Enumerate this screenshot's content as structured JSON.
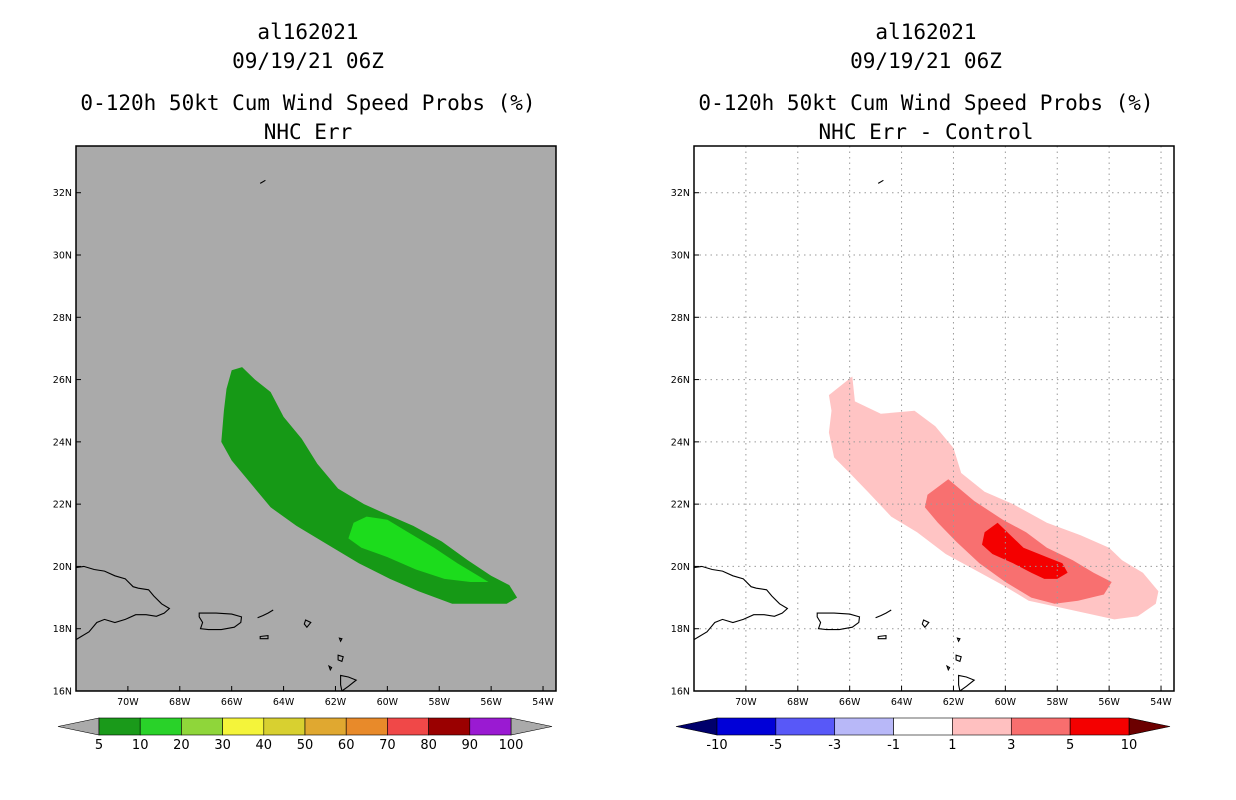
{
  "left_panel": {
    "storm_id": "al162021",
    "datetime": "09/19/21 06Z",
    "title": "0-120h 50kt Cum Wind Speed Probs (%)",
    "subtitle": "NHC Err"
  },
  "right_panel": {
    "storm_id": "al162021",
    "datetime": "09/19/21 06Z",
    "title": "0-120h 50kt Cum Wind Speed Probs (%)",
    "subtitle": "NHC Err - Control"
  },
  "chart_data": [
    {
      "type": "heatmap",
      "title": "0-120h 50kt Cum Wind Speed Probs (%)",
      "subtitle": "NHC Err",
      "xlim": [
        -72.0,
        -53.5
      ],
      "ylim": [
        16.0,
        33.5
      ],
      "x_ticks": [
        -70,
        -68,
        -66,
        -64,
        -62,
        -60,
        -58,
        -56,
        -54
      ],
      "x_tick_labels": [
        "70W",
        "68W",
        "66W",
        "64W",
        "62W",
        "60W",
        "58W",
        "56W",
        "54W"
      ],
      "y_ticks": [
        16,
        18,
        20,
        22,
        24,
        26,
        28,
        30,
        32
      ],
      "y_tick_labels": [
        "16N",
        "18N",
        "20N",
        "22N",
        "24N",
        "26N",
        "28N",
        "30N",
        "32N"
      ],
      "grid": false,
      "background": "#aaaaaa",
      "colorbar": {
        "labels": [
          "5",
          "10",
          "20",
          "30",
          "40",
          "50",
          "60",
          "70",
          "80",
          "90",
          "100"
        ],
        "colors": [
          "#1a9a1a",
          "#29d229",
          "#8fd63a",
          "#f4f43a",
          "#d8d030",
          "#e0a830",
          "#e88a2a",
          "#f04848",
          "#9a0000",
          "#9a1ad2"
        ],
        "end_colors": [
          "#aaaaaa",
          "#aaaaaa"
        ]
      },
      "contour_levels": [
        {
          "level": 5,
          "color": "#169916",
          "polygon": [
            [
              -66.0,
              26.3
            ],
            [
              -65.6,
              26.4
            ],
            [
              -65.1,
              26.0
            ],
            [
              -64.5,
              25.6
            ],
            [
              -64.0,
              24.8
            ],
            [
              -63.3,
              24.1
            ],
            [
              -62.7,
              23.3
            ],
            [
              -61.9,
              22.5
            ],
            [
              -60.9,
              22.0
            ],
            [
              -60.1,
              21.7
            ],
            [
              -59.0,
              21.3
            ],
            [
              -57.9,
              20.8
            ],
            [
              -56.9,
              20.2
            ],
            [
              -56.0,
              19.7
            ],
            [
              -55.3,
              19.4
            ],
            [
              -55.0,
              19.0
            ],
            [
              -55.4,
              18.8
            ],
            [
              -56.0,
              18.8
            ],
            [
              -57.5,
              18.8
            ],
            [
              -58.8,
              19.2
            ],
            [
              -59.9,
              19.6
            ],
            [
              -61.1,
              20.1
            ],
            [
              -62.3,
              20.7
            ],
            [
              -63.5,
              21.3
            ],
            [
              -64.5,
              21.9
            ],
            [
              -65.3,
              22.7
            ],
            [
              -66.0,
              23.4
            ],
            [
              -66.4,
              24.0
            ],
            [
              -66.3,
              25.0
            ],
            [
              -66.2,
              25.7
            ]
          ]
        },
        {
          "level": 10,
          "color": "#1cdc1c",
          "polygon": [
            [
              -61.3,
              21.4
            ],
            [
              -60.8,
              21.6
            ],
            [
              -60.0,
              21.5
            ],
            [
              -59.2,
              21.1
            ],
            [
              -58.2,
              20.6
            ],
            [
              -57.3,
              20.1
            ],
            [
              -56.5,
              19.7
            ],
            [
              -56.1,
              19.5
            ],
            [
              -56.8,
              19.5
            ],
            [
              -57.8,
              19.6
            ],
            [
              -58.9,
              19.9
            ],
            [
              -60.0,
              20.3
            ],
            [
              -61.0,
              20.6
            ],
            [
              -61.5,
              20.9
            ]
          ]
        }
      ]
    },
    {
      "type": "heatmap",
      "title": "0-120h 50kt Cum Wind Speed Probs (%)",
      "subtitle": "NHC Err - Control",
      "xlim": [
        -72.0,
        -53.5
      ],
      "ylim": [
        16.0,
        33.5
      ],
      "x_ticks": [
        -70,
        -68,
        -66,
        -64,
        -62,
        -60,
        -58,
        -56,
        -54
      ],
      "x_tick_labels": [
        "70W",
        "68W",
        "66W",
        "64W",
        "62W",
        "60W",
        "58W",
        "56W",
        "54W"
      ],
      "y_ticks": [
        16,
        18,
        20,
        22,
        24,
        26,
        28,
        30,
        32
      ],
      "y_tick_labels": [
        "16N",
        "18N",
        "20N",
        "22N",
        "24N",
        "26N",
        "28N",
        "30N",
        "32N"
      ],
      "grid": true,
      "background": "#ffffff",
      "colorbar": {
        "labels": [
          "-10",
          "-5",
          "-3",
          "-1",
          "1",
          "3",
          "5",
          "10"
        ],
        "colors": [
          "#0000d8",
          "#5858f8",
          "#b8b8f8",
          "#ffffff",
          "#ffc0c0",
          "#f86e6e",
          "#f40000"
        ],
        "end_colors": [
          "#00006c",
          "#6c0000"
        ]
      },
      "contour_levels": [
        {
          "level": 1,
          "color": "#ffc4c4",
          "polygon": [
            [
              -66.8,
              25.5
            ],
            [
              -65.9,
              26.1
            ],
            [
              -65.8,
              25.3
            ],
            [
              -64.8,
              24.9
            ],
            [
              -63.5,
              25.0
            ],
            [
              -62.7,
              24.5
            ],
            [
              -62.0,
              23.8
            ],
            [
              -61.7,
              23.0
            ],
            [
              -60.8,
              22.4
            ],
            [
              -59.7,
              22.0
            ],
            [
              -58.4,
              21.4
            ],
            [
              -57.1,
              21.0
            ],
            [
              -56.0,
              20.6
            ],
            [
              -55.5,
              20.2
            ],
            [
              -54.7,
              19.8
            ],
            [
              -54.1,
              19.2
            ],
            [
              -54.2,
              18.8
            ],
            [
              -54.9,
              18.4
            ],
            [
              -55.8,
              18.3
            ],
            [
              -56.9,
              18.5
            ],
            [
              -58.0,
              18.7
            ],
            [
              -59.1,
              18.9
            ],
            [
              -60.1,
              19.4
            ],
            [
              -61.2,
              19.9
            ],
            [
              -62.3,
              20.4
            ],
            [
              -63.4,
              21.1
            ],
            [
              -64.4,
              21.6
            ],
            [
              -65.3,
              22.4
            ],
            [
              -66.0,
              23.0
            ],
            [
              -66.6,
              23.5
            ],
            [
              -66.8,
              24.3
            ],
            [
              -66.7,
              25.0
            ]
          ]
        },
        {
          "level": 3,
          "color": "#f87070",
          "polygon": [
            [
              -63.0,
              22.3
            ],
            [
              -62.2,
              22.8
            ],
            [
              -61.2,
              22.1
            ],
            [
              -60.1,
              21.5
            ],
            [
              -59.2,
              21.1
            ],
            [
              -58.4,
              20.6
            ],
            [
              -57.4,
              20.2
            ],
            [
              -56.6,
              19.8
            ],
            [
              -55.9,
              19.5
            ],
            [
              -56.2,
              19.1
            ],
            [
              -57.2,
              18.9
            ],
            [
              -58.1,
              18.8
            ],
            [
              -59.0,
              19.0
            ],
            [
              -60.0,
              19.5
            ],
            [
              -61.0,
              20.1
            ],
            [
              -61.9,
              20.8
            ],
            [
              -62.6,
              21.4
            ],
            [
              -63.1,
              21.9
            ]
          ]
        },
        {
          "level": 5,
          "color": "#f40000",
          "polygon": [
            [
              -60.8,
              21.1
            ],
            [
              -60.3,
              21.4
            ],
            [
              -59.8,
              21.0
            ],
            [
              -59.3,
              20.6
            ],
            [
              -58.4,
              20.3
            ],
            [
              -57.8,
              20.1
            ],
            [
              -57.6,
              19.8
            ],
            [
              -58.0,
              19.6
            ],
            [
              -58.5,
              19.6
            ],
            [
              -59.0,
              19.8
            ],
            [
              -59.7,
              20.1
            ],
            [
              -60.5,
              20.4
            ],
            [
              -60.9,
              20.7
            ]
          ]
        }
      ]
    }
  ]
}
